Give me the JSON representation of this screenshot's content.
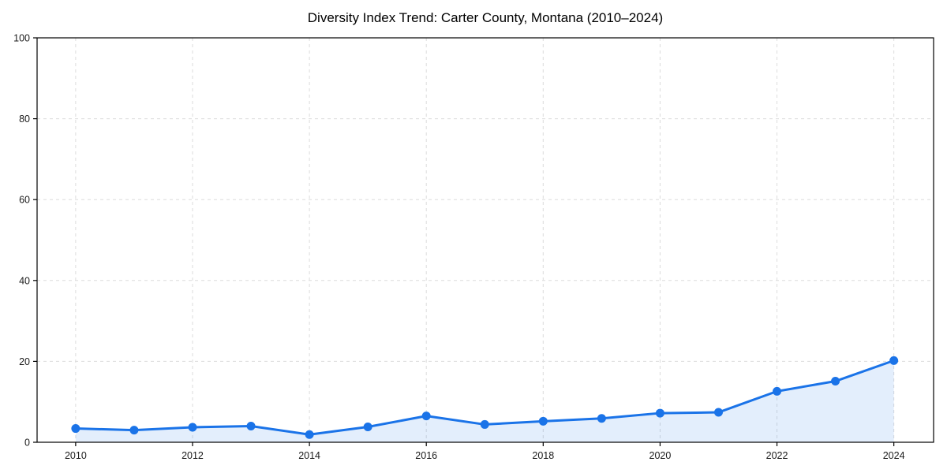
{
  "figure": {
    "background": "#ffffff"
  },
  "chart_data": {
    "type": "line",
    "title": "Diversity Index Trend: Carter County, Montana (2010–2024)",
    "x": [
      2010,
      2011,
      2012,
      2013,
      2014,
      2015,
      2016,
      2017,
      2018,
      2019,
      2020,
      2021,
      2022,
      2023,
      2024
    ],
    "values": [
      3.4,
      3.0,
      3.7,
      4.0,
      1.9,
      3.8,
      6.5,
      4.4,
      5.2,
      5.9,
      7.2,
      7.4,
      12.6,
      15.1,
      20.2
    ],
    "xlabel": "",
    "ylabel": "",
    "xlim": [
      2009.34,
      2024.68
    ],
    "ylim": [
      0,
      100
    ],
    "xticks": [
      2010,
      2012,
      2014,
      2016,
      2018,
      2020,
      2022,
      2024
    ],
    "yticks": [
      0,
      20,
      40,
      60,
      80,
      100
    ],
    "grid": true,
    "grid_style": "dashed",
    "legend_position": "none",
    "area_fill_under_line": true,
    "markers": true
  },
  "style": {
    "line_color": "#1a73e8",
    "fill_color": "#1a73e8",
    "fill_opacity": 0.12,
    "grid_color": "#dcdcdc",
    "spine_color": "#000000",
    "tick_color": "#000000",
    "text_color": "#1a1a1a",
    "background": "#ffffff"
  }
}
